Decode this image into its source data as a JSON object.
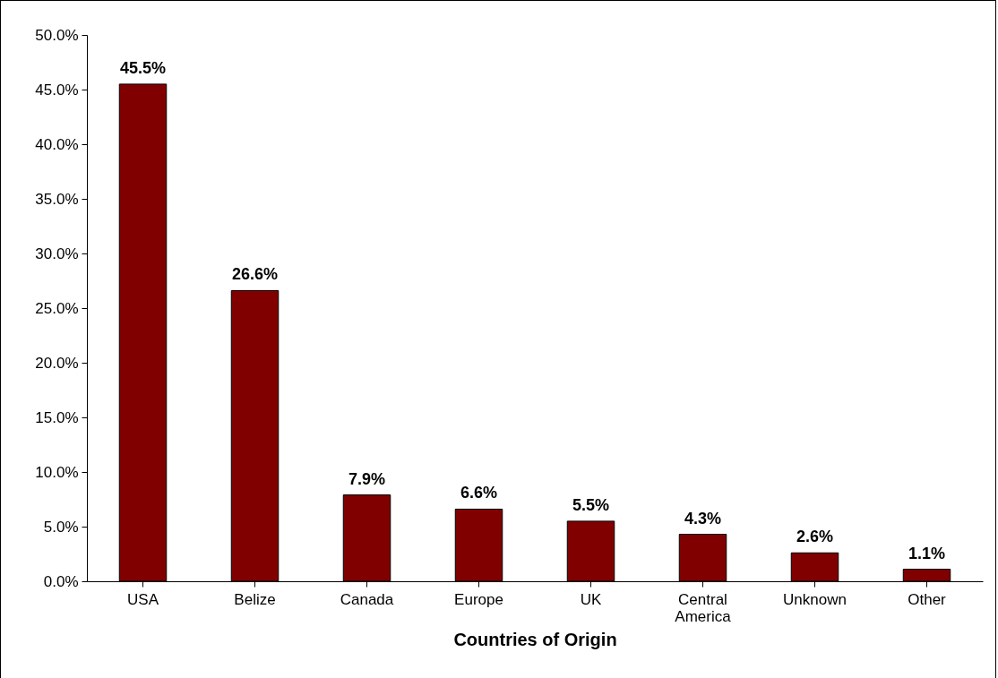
{
  "chart_data": {
    "type": "bar",
    "xlabel": "Countries of Origin",
    "categories": [
      "USA",
      "Belize",
      "Canada",
      "Europe",
      "UK",
      "Central America",
      "Unknown",
      "Other"
    ],
    "values": [
      45.5,
      26.6,
      7.9,
      6.6,
      5.5,
      4.3,
      2.6,
      1.1
    ],
    "value_labels": [
      "45.5%",
      "26.6%",
      "7.9%",
      "6.6%",
      "5.5%",
      "4.3%",
      "2.6%",
      "1.1%"
    ],
    "color": "#800000",
    "ylim": [
      0,
      50
    ],
    "yticks": [
      {
        "value": 0,
        "label": "0.0%"
      },
      {
        "value": 5,
        "label": "5.0%"
      },
      {
        "value": 10,
        "label": "10.0%"
      },
      {
        "value": 15,
        "label": "15.0%"
      },
      {
        "value": 20,
        "label": "20.0%"
      },
      {
        "value": 25,
        "label": "25.0%"
      },
      {
        "value": 30,
        "label": "30.0%"
      },
      {
        "value": 35,
        "label": "35.0%"
      },
      {
        "value": 40,
        "label": "40.0%"
      },
      {
        "value": 45,
        "label": "45.0%"
      },
      {
        "value": 50,
        "label": "50.0%"
      }
    ],
    "grid": false
  }
}
